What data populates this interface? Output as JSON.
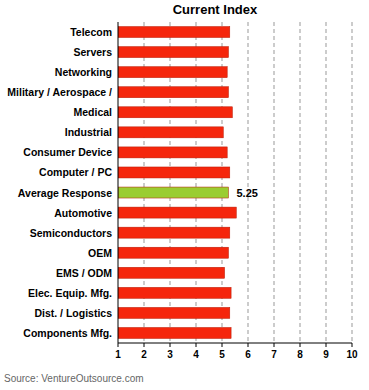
{
  "chart_data": {
    "type": "bar",
    "orientation": "horizontal",
    "title": "Current Index",
    "categories": [
      "Telecom",
      "Servers",
      "Networking",
      "Military / Aerospace /",
      "Medical",
      "Industrial",
      "Consumer Device",
      "Computer / PC",
      "Average Response",
      "Automotive",
      "Semiconductors",
      "OEM",
      "EMS / ODM",
      "Elec. Equip. Mfg.",
      "Dist. / Logistics",
      "Components Mfg."
    ],
    "values": [
      5.3,
      5.25,
      5.2,
      5.25,
      5.4,
      5.05,
      5.2,
      5.3,
      5.25,
      5.55,
      5.3,
      5.25,
      5.1,
      5.35,
      5.3,
      5.35
    ],
    "value_labels": [
      null,
      null,
      null,
      null,
      null,
      null,
      null,
      null,
      "5.25",
      null,
      null,
      null,
      null,
      null,
      null,
      null
    ],
    "colors": [
      "#f5260c",
      "#f5260c",
      "#f5260c",
      "#f5260c",
      "#f5260c",
      "#f5260c",
      "#f5260c",
      "#f5260c",
      "#9acd32",
      "#f5260c",
      "#f5260c",
      "#f5260c",
      "#f5260c",
      "#f5260c",
      "#f5260c",
      "#f5260c"
    ],
    "xlim": [
      1,
      10
    ],
    "xticks": [
      1,
      2,
      3,
      4,
      5,
      6,
      7,
      8,
      9,
      10
    ],
    "grid": true,
    "annotations": [
      "Source: VentureOutsource.com"
    ]
  }
}
